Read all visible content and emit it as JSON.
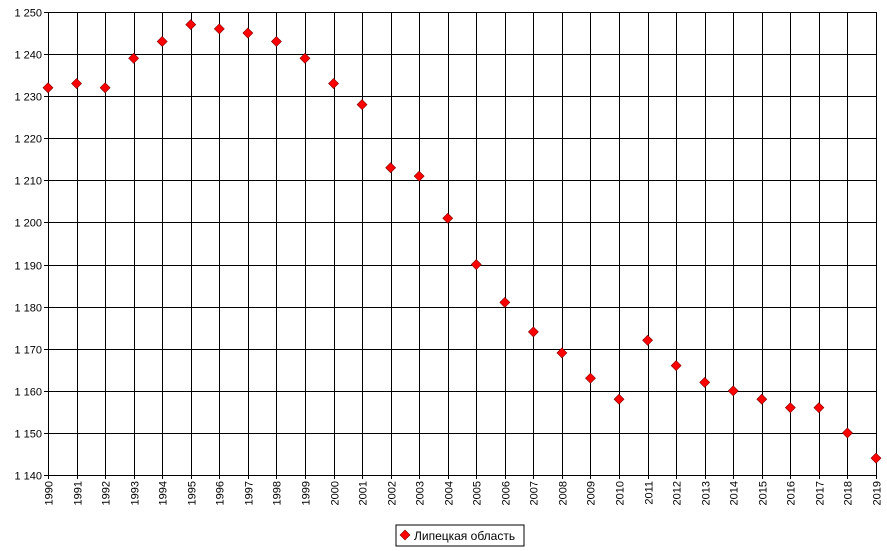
{
  "chart_data": {
    "type": "scatter",
    "title": "",
    "xlabel": "",
    "ylabel": "",
    "x": [
      1990,
      1991,
      1992,
      1993,
      1994,
      1995,
      1996,
      1997,
      1998,
      1999,
      2000,
      2001,
      2002,
      2003,
      2004,
      2005,
      2006,
      2007,
      2008,
      2009,
      2010,
      2011,
      2012,
      2013,
      2014,
      2015,
      2016,
      2017,
      2018,
      2019
    ],
    "x_tick_labels": [
      "1990",
      "1991",
      "1992",
      "1993",
      "1994",
      "1995",
      "1996",
      "1997",
      "1998",
      "1999",
      "2000",
      "2001",
      "2002",
      "2003",
      "2004",
      "2005",
      "2006",
      "2007",
      "2008",
      "2009",
      "2010",
      "2011",
      "2012",
      "2013",
      "2014",
      "2015",
      "2016",
      "2017",
      "2018",
      "2019"
    ],
    "series": [
      {
        "name": "Липецкая область",
        "values": [
          1232,
          1233,
          1232,
          1239,
          1243,
          1247,
          1246,
          1245,
          1243,
          1239,
          1233,
          1228,
          1213,
          1211,
          1201,
          1190,
          1181,
          1174,
          1169,
          1163,
          1158,
          1172,
          1166,
          1162,
          1160,
          1158,
          1156,
          1156,
          1150,
          1144
        ],
        "color": "#ff0000",
        "marker": "diamond"
      }
    ],
    "ylim": [
      1140,
      1250
    ],
    "y_ticks": [
      1140,
      1150,
      1160,
      1170,
      1180,
      1190,
      1200,
      1210,
      1220,
      1230,
      1240,
      1250
    ],
    "y_tick_labels": [
      "1 140",
      "1 150",
      "1 160",
      "1 170",
      "1 180",
      "1 190",
      "1 200",
      "1 210",
      "1 220",
      "1 230",
      "1 240",
      "1 250"
    ],
    "grid": true,
    "legend_position": "bottom-center",
    "colors": {
      "grid": "#000000",
      "axis": "#000000",
      "background": "#ffffff",
      "marker_outline": "#800000"
    }
  },
  "legend": {
    "label": "Липецкая область"
  }
}
